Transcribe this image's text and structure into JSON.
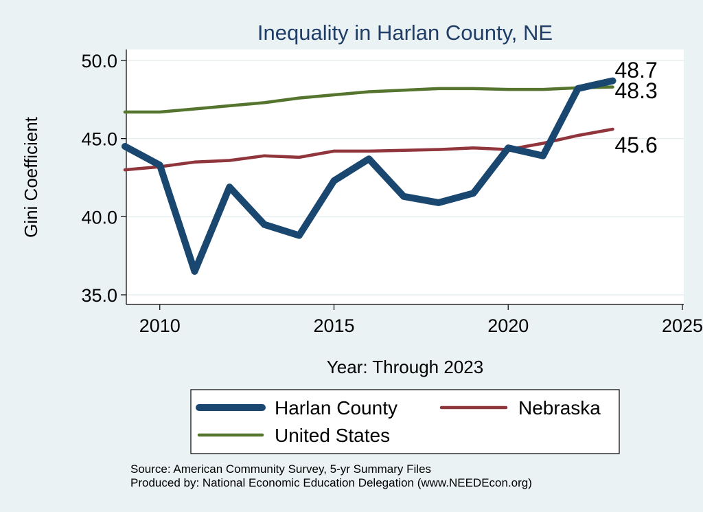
{
  "chart_data": {
    "type": "line",
    "title": "Inequality in Harlan County, NE",
    "xlabel": "Year: Through 2023",
    "ylabel": "Gini Coefficient",
    "xlim": [
      2009,
      2025
    ],
    "ylim": [
      35,
      50
    ],
    "xticks": [
      2010,
      2015,
      2020,
      2025
    ],
    "yticks": [
      "35.0",
      "40.0",
      "45.0",
      "50.0"
    ],
    "grid": true,
    "legend_position": "bottom",
    "x": [
      2009,
      2010,
      2011,
      2012,
      2013,
      2014,
      2015,
      2016,
      2017,
      2018,
      2019,
      2020,
      2021,
      2022,
      2023
    ],
    "series": [
      {
        "name": "Harlan County",
        "color": "#1a476f",
        "values": [
          44.5,
          43.3,
          36.5,
          41.9,
          39.5,
          38.8,
          42.3,
          43.7,
          41.3,
          40.9,
          41.5,
          44.4,
          43.9,
          48.2,
          48.7
        ],
        "end_label": "48.7"
      },
      {
        "name": "Nebraska",
        "color": "#90353b",
        "values": [
          43.0,
          43.2,
          43.5,
          43.6,
          43.9,
          43.8,
          44.2,
          44.2,
          44.25,
          44.3,
          44.4,
          44.3,
          44.7,
          45.2,
          45.6
        ],
        "end_label": "45.6"
      },
      {
        "name": "United States",
        "color": "#55752f",
        "values": [
          46.7,
          46.7,
          46.9,
          47.1,
          47.3,
          47.6,
          47.8,
          48.0,
          48.1,
          48.2,
          48.2,
          48.15,
          48.15,
          48.25,
          48.3
        ],
        "end_label": "48.3"
      }
    ],
    "notes": [
      "Source: American Community Survey, 5-yr Summary Files",
      "Produced by: National Economic Education Delegation (www.NEEDEcon.org)"
    ]
  }
}
